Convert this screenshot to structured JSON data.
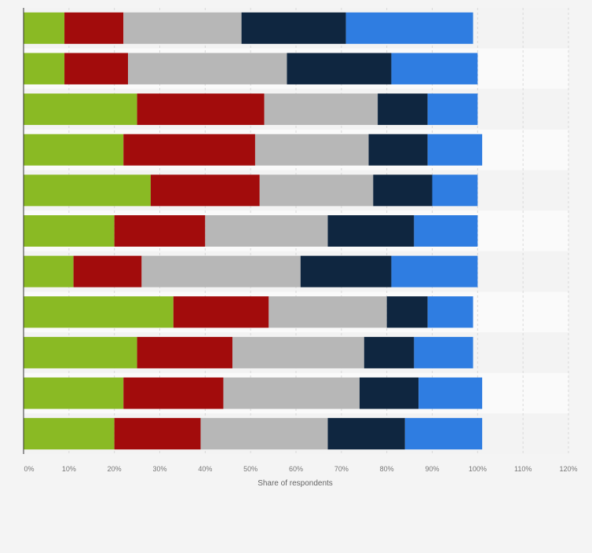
{
  "chart_data": {
    "type": "bar",
    "orientation": "horizontal",
    "stacked": true,
    "categories": [
      "",
      "",
      "",
      "",
      "",
      "",
      "",
      "",
      "",
      "",
      ""
    ],
    "series": [
      {
        "color": "#8aba24",
        "values": [
          9,
          9,
          25,
          22,
          28,
          20,
          11,
          33,
          25,
          22,
          20
        ]
      },
      {
        "color": "#a20c0c",
        "values": [
          13,
          14,
          28,
          29,
          24,
          20,
          15,
          21,
          21,
          22,
          19
        ]
      },
      {
        "color": "#b7b7b7",
        "values": [
          26,
          35,
          25,
          25,
          25,
          27,
          35,
          26,
          29,
          30,
          28
        ]
      },
      {
        "color": "#0f2640",
        "values": [
          23,
          23,
          11,
          13,
          13,
          19,
          20,
          9,
          11,
          13,
          17
        ]
      },
      {
        "color": "#2f7de1",
        "values": [
          28,
          19,
          11,
          12,
          10,
          14,
          19,
          10,
          13,
          14,
          17
        ]
      }
    ],
    "xaxis": {
      "label": "Share of respondents",
      "range": [
        0,
        120
      ],
      "ticks": [
        0,
        10,
        20,
        30,
        40,
        50,
        60,
        70,
        80,
        90,
        100,
        110,
        120
      ],
      "tick_labels": [
        "0%",
        "10%",
        "20%",
        "30%",
        "40%",
        "50%",
        "60%",
        "70%",
        "80%",
        "90%",
        "100%",
        "110%",
        "120%"
      ]
    },
    "grid": true,
    "legend": "none"
  }
}
